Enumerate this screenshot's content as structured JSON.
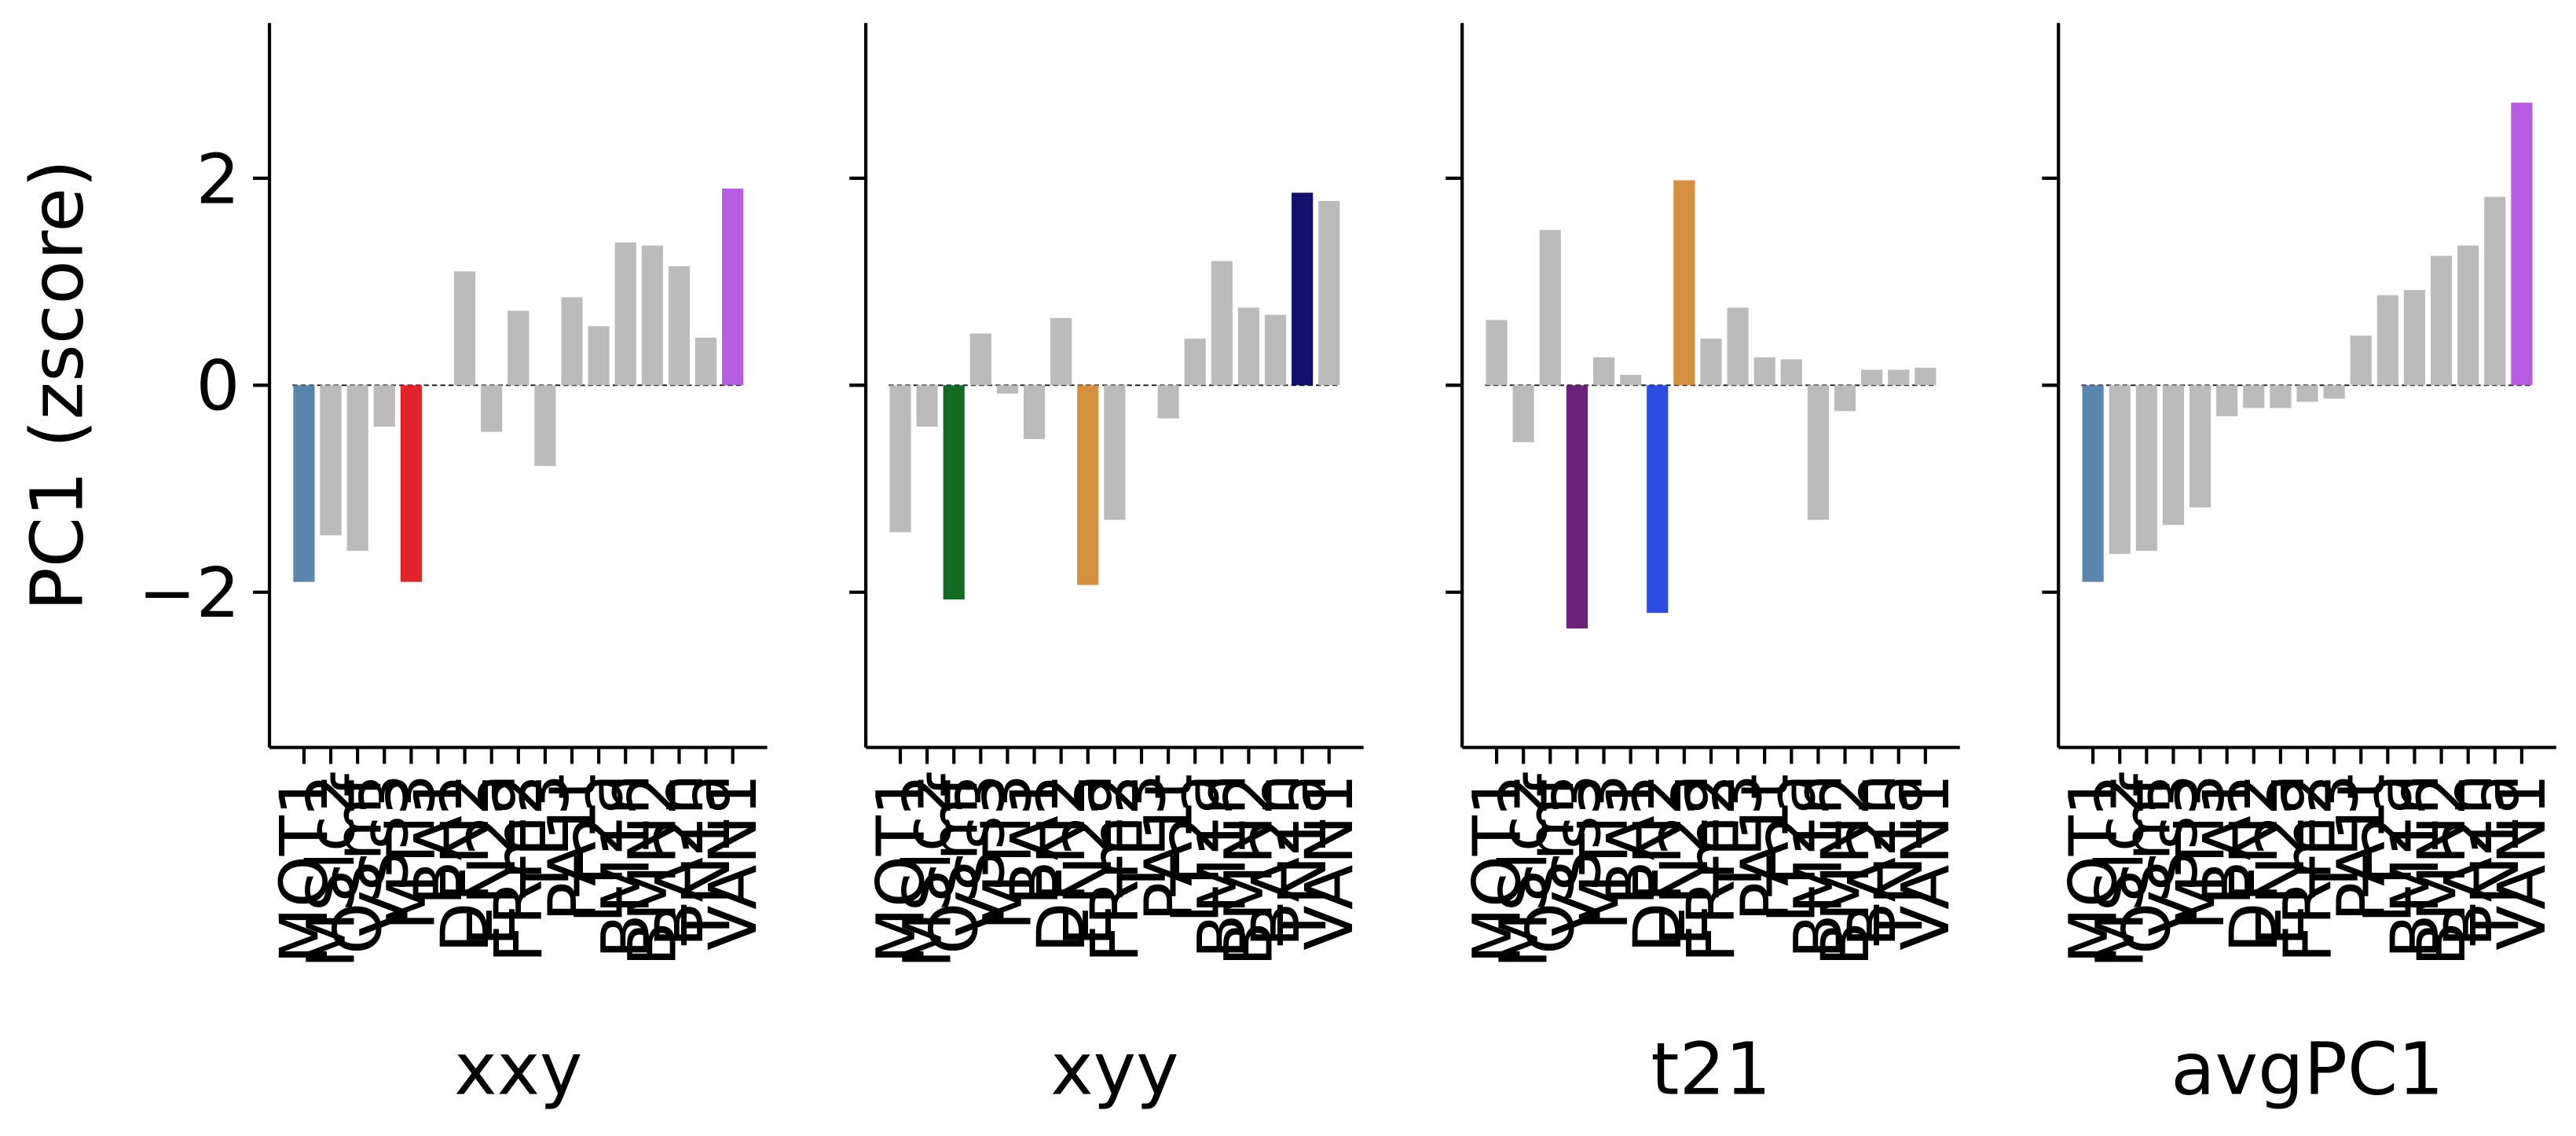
{
  "chart_data": [
    {
      "type": "bar",
      "ylabel": "PC1 (zscore)",
      "xlabel": "xxy",
      "categories": [
        "MOT1",
        "MSlc2",
        "OSmf",
        "VSs3",
        "MTl3",
        "BA1",
        "DFN2",
        "EN2a",
        "FRm2",
        "TE3",
        "PA1t",
        "LT2a",
        "BM1n",
        "BMN2",
        "BA2n",
        "TN1a",
        "VAN1"
      ],
      "values": [
        -1.9,
        -1.45,
        -1.6,
        -0.4,
        -1.9,
        0,
        1.1,
        -0.45,
        0.72,
        -0.78,
        0.85,
        0.57,
        1.38,
        1.35,
        1.15,
        0.46,
        1.9
      ],
      "colors": [
        "#5a85ad",
        "#bbbbbb",
        "#bbbbbb",
        "#bbbbbb",
        "#e3232a",
        "#bbbbbb",
        "#bbbbbb",
        "#bbbbbb",
        "#bbbbbb",
        "#bbbbbb",
        "#bbbbbb",
        "#bbbbbb",
        "#bbbbbb",
        "#bbbbbb",
        "#bbbbbb",
        "#bbbbbb",
        "#b65ce0"
      ],
      "ylim": [
        -3.5,
        3.5
      ],
      "yticks": [
        {
          "value": -2,
          "label": "−2"
        },
        0,
        2
      ],
      "zero_line": true
    },
    {
      "type": "bar",
      "xlabel": "xyy",
      "categories": [
        "MOT1",
        "MSlc2",
        "OSmf",
        "VSs3",
        "MTl3",
        "BA1",
        "DFN2",
        "EN2a",
        "FRm2",
        "TE3",
        "PA1t",
        "LT2a",
        "BM1n",
        "BMN2",
        "BA2n",
        "TN1a",
        "VAN1"
      ],
      "values": [
        -1.42,
        -0.4,
        -2.07,
        0.5,
        -0.08,
        -0.52,
        0.65,
        -1.93,
        -1.3,
        0,
        -0.32,
        0.45,
        1.2,
        0.75,
        0.68,
        1.86,
        1.78
      ],
      "colors": [
        "#bbbbbb",
        "#bbbbbb",
        "#136b22",
        "#bbbbbb",
        "#bbbbbb",
        "#bbbbbb",
        "#bbbbbb",
        "#d4903d",
        "#bbbbbb",
        "#bbbbbb",
        "#bbbbbb",
        "#bbbbbb",
        "#bbbbbb",
        "#bbbbbb",
        "#bbbbbb",
        "#11116b",
        "#bbbbbb"
      ],
      "ylim": [
        -3.5,
        3.5
      ],
      "yticks": [
        {
          "value": -2,
          "label": "−2"
        },
        0,
        2
      ],
      "zero_line": true
    },
    {
      "type": "bar",
      "xlabel": "t21",
      "categories": [
        "MOT1",
        "MSlc2",
        "OSmf",
        "VSs3",
        "MTl3",
        "BA1",
        "DFN2",
        "EN2a",
        "FRm2",
        "TE3",
        "PA1t",
        "LT2a",
        "BM1n",
        "BMN2",
        "BA2n",
        "TN1a",
        "VAN1"
      ],
      "values": [
        0.63,
        -0.55,
        1.5,
        -2.35,
        0.27,
        0.1,
        -2.2,
        1.98,
        0.45,
        0.75,
        0.27,
        0.25,
        -1.3,
        -0.25,
        0.15,
        0.15,
        0.17
      ],
      "colors": [
        "#bbbbbb",
        "#bbbbbb",
        "#bbbbbb",
        "#6a2379",
        "#bbbbbb",
        "#bbbbbb",
        "#2d4de0",
        "#d4903d",
        "#bbbbbb",
        "#bbbbbb",
        "#bbbbbb",
        "#bbbbbb",
        "#bbbbbb",
        "#bbbbbb",
        "#bbbbbb",
        "#bbbbbb",
        "#bbbbbb"
      ],
      "ylim": [
        -3.5,
        3.5
      ],
      "yticks": [
        {
          "value": -2,
          "label": "−2"
        },
        0,
        2
      ],
      "zero_line": true
    },
    {
      "type": "bar",
      "xlabel": "avgPC1",
      "categories": [
        "MOT1",
        "MSlc2",
        "OSmf",
        "VSs3",
        "MTl3",
        "BA1",
        "DFN2",
        "EN2a",
        "FRm2",
        "TE3",
        "PA1t",
        "LT2a",
        "BM1n",
        "BMN2",
        "BA2n",
        "TN1a",
        "VAN1"
      ],
      "values": [
        -1.9,
        -1.63,
        -1.6,
        -1.35,
        -1.18,
        -0.3,
        -0.22,
        -0.22,
        -0.16,
        -0.13,
        0.48,
        0.87,
        0.92,
        1.25,
        1.35,
        1.82,
        2.73
      ],
      "colors": [
        "#5a85ad",
        "#bbbbbb",
        "#bbbbbb",
        "#bbbbbb",
        "#bbbbbb",
        "#bbbbbb",
        "#bbbbbb",
        "#bbbbbb",
        "#bbbbbb",
        "#bbbbbb",
        "#bbbbbb",
        "#bbbbbb",
        "#bbbbbb",
        "#bbbbbb",
        "#bbbbbb",
        "#bbbbbb",
        "#b65ce0"
      ],
      "ylim": [
        -3.5,
        3.5
      ],
      "yticks": [
        {
          "value": -2,
          "label": "−2"
        },
        0,
        2
      ],
      "zero_line": true
    }
  ]
}
